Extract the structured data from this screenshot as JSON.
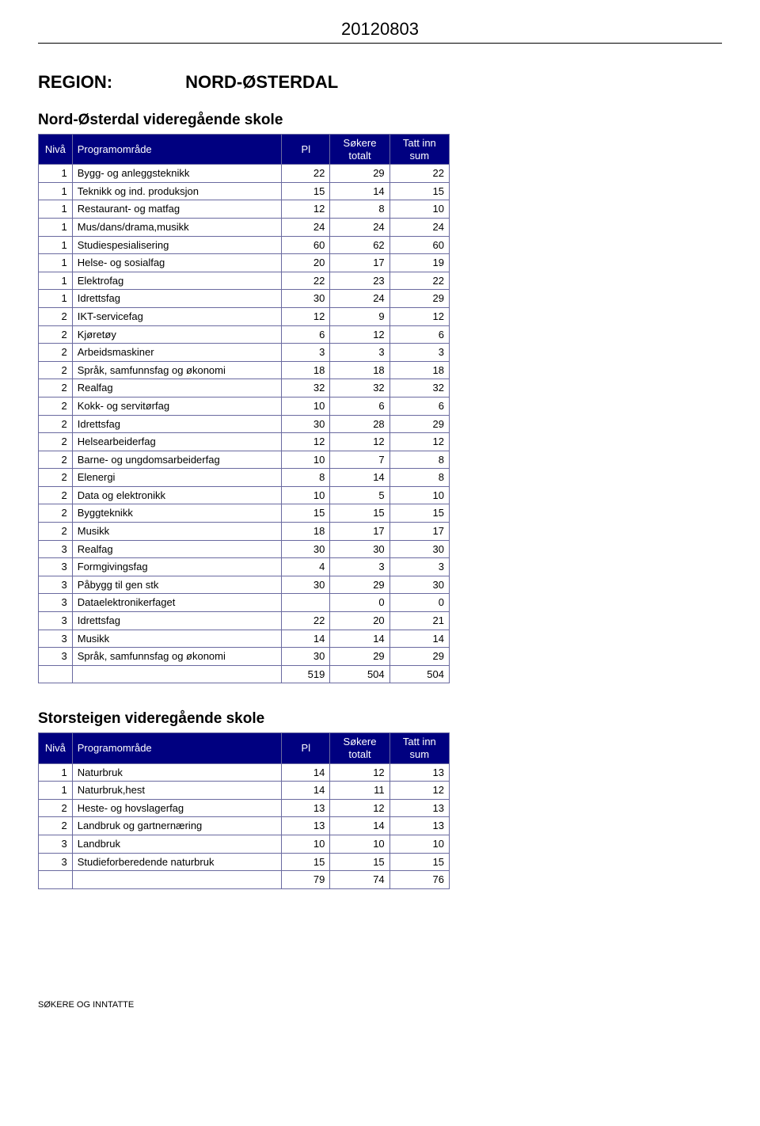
{
  "doc_date": "20120803",
  "region_label": "REGION:",
  "region_name": "NORD-ØSTERDAL",
  "columns": {
    "niva": "Nivå",
    "programomrade": "Programområde",
    "pl": "Pl",
    "sokere": "Søkere totalt",
    "tatt": "Tatt inn sum"
  },
  "tables": [
    {
      "title": "Nord-Østerdal videregående skole",
      "rows": [
        {
          "n": "1",
          "p": "Bygg- og anleggsteknikk",
          "pl": "22",
          "s": "29",
          "t": "22"
        },
        {
          "n": "1",
          "p": "Teknikk og ind. produksjon",
          "pl": "15",
          "s": "14",
          "t": "15"
        },
        {
          "n": "1",
          "p": "Restaurant- og matfag",
          "pl": "12",
          "s": "8",
          "t": "10"
        },
        {
          "n": "1",
          "p": "Mus/dans/drama,musikk",
          "pl": "24",
          "s": "24",
          "t": "24"
        },
        {
          "n": "1",
          "p": "Studiespesialisering",
          "pl": "60",
          "s": "62",
          "t": "60"
        },
        {
          "n": "1",
          "p": "Helse- og sosialfag",
          "pl": "20",
          "s": "17",
          "t": "19"
        },
        {
          "n": "1",
          "p": "Elektrofag",
          "pl": "22",
          "s": "23",
          "t": "22"
        },
        {
          "n": "1",
          "p": "Idrettsfag",
          "pl": "30",
          "s": "24",
          "t": "29"
        },
        {
          "n": "2",
          "p": "IKT-servicefag",
          "pl": "12",
          "s": "9",
          "t": "12"
        },
        {
          "n": "2",
          "p": "Kjøretøy",
          "pl": "6",
          "s": "12",
          "t": "6"
        },
        {
          "n": "2",
          "p": "Arbeidsmaskiner",
          "pl": "3",
          "s": "3",
          "t": "3"
        },
        {
          "n": "2",
          "p": "Språk, samfunnsfag og økonomi",
          "pl": "18",
          "s": "18",
          "t": "18"
        },
        {
          "n": "2",
          "p": "Realfag",
          "pl": "32",
          "s": "32",
          "t": "32"
        },
        {
          "n": "2",
          "p": "Kokk- og servitørfag",
          "pl": "10",
          "s": "6",
          "t": "6"
        },
        {
          "n": "2",
          "p": "Idrettsfag",
          "pl": "30",
          "s": "28",
          "t": "29"
        },
        {
          "n": "2",
          "p": "Helsearbeiderfag",
          "pl": "12",
          "s": "12",
          "t": "12"
        },
        {
          "n": "2",
          "p": "Barne- og ungdomsarbeiderfag",
          "pl": "10",
          "s": "7",
          "t": "8"
        },
        {
          "n": "2",
          "p": "Elenergi",
          "pl": "8",
          "s": "14",
          "t": "8"
        },
        {
          "n": "2",
          "p": "Data og elektronikk",
          "pl": "10",
          "s": "5",
          "t": "10"
        },
        {
          "n": "2",
          "p": "Byggteknikk",
          "pl": "15",
          "s": "15",
          "t": "15"
        },
        {
          "n": "2",
          "p": "Musikk",
          "pl": "18",
          "s": "17",
          "t": "17"
        },
        {
          "n": "3",
          "p": "Realfag",
          "pl": "30",
          "s": "30",
          "t": "30"
        },
        {
          "n": "3",
          "p": "Formgivingsfag",
          "pl": "4",
          "s": "3",
          "t": "3"
        },
        {
          "n": "3",
          "p": "Påbygg til gen stk",
          "pl": "30",
          "s": "29",
          "t": "30"
        },
        {
          "n": "3",
          "p": "Dataelektronikerfaget",
          "pl": "",
          "s": "0",
          "t": "0"
        },
        {
          "n": "3",
          "p": "Idrettsfag",
          "pl": "22",
          "s": "20",
          "t": "21"
        },
        {
          "n": "3",
          "p": "Musikk",
          "pl": "14",
          "s": "14",
          "t": "14"
        },
        {
          "n": "3",
          "p": "Språk, samfunnsfag og økonomi",
          "pl": "30",
          "s": "29",
          "t": "29"
        }
      ],
      "totals": {
        "pl": "519",
        "s": "504",
        "t": "504"
      }
    },
    {
      "title": "Storsteigen videregående skole",
      "rows": [
        {
          "n": "1",
          "p": "Naturbruk",
          "pl": "14",
          "s": "12",
          "t": "13"
        },
        {
          "n": "1",
          "p": "Naturbruk,hest",
          "pl": "14",
          "s": "11",
          "t": "12"
        },
        {
          "n": "2",
          "p": "Heste- og hovslagerfag",
          "pl": "13",
          "s": "12",
          "t": "13"
        },
        {
          "n": "2",
          "p": "Landbruk og gartnernæring",
          "pl": "13",
          "s": "14",
          "t": "13"
        },
        {
          "n": "3",
          "p": "Landbruk",
          "pl": "10",
          "s": "10",
          "t": "10"
        },
        {
          "n": "3",
          "p": "Studieforberedende naturbruk",
          "pl": "15",
          "s": "15",
          "t": "15"
        }
      ],
      "totals": {
        "pl": "79",
        "s": "74",
        "t": "76"
      }
    }
  ],
  "footer": "SØKERE OG INNTATTE"
}
